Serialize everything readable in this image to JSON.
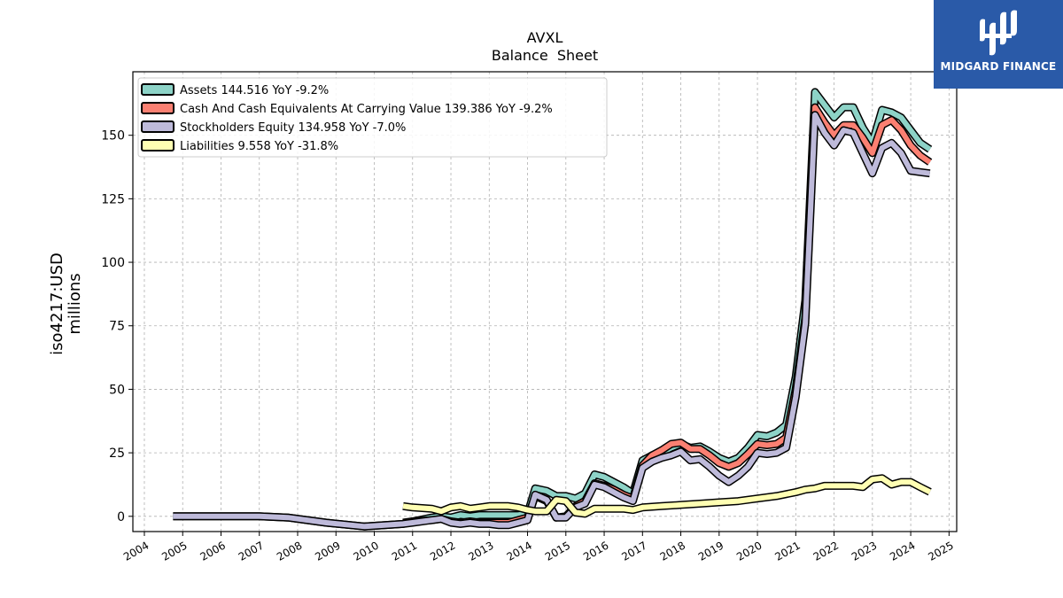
{
  "brand": {
    "name": "MIDGARD FINANCE",
    "bg_color": "#2a5aa8",
    "icon": "midgard-logo-icon"
  },
  "chart_data": {
    "type": "line",
    "title": "AVXL",
    "subtitle": "Balance  Sheet",
    "ylabel_line1": "iso4217:USD",
    "ylabel_line2": "millions",
    "xlabel": "",
    "xlim": [
      2003.7,
      2025.2
    ],
    "ylim": [
      -6,
      175
    ],
    "x_ticks": [
      2004,
      2005,
      2006,
      2007,
      2008,
      2009,
      2010,
      2011,
      2012,
      2013,
      2014,
      2015,
      2016,
      2017,
      2018,
      2019,
      2020,
      2021,
      2022,
      2023,
      2024,
      2025
    ],
    "y_ticks": [
      0,
      25,
      50,
      75,
      100,
      125,
      150
    ],
    "grid": true,
    "legend_position": "top-left",
    "series": [
      {
        "name": "Assets",
        "legend_label": "Assets  144.516 YoY -9.2%",
        "color": "#8dd3c7",
        "points": [
          [
            2004.75,
            0
          ],
          [
            2005.5,
            0
          ],
          [
            2006.5,
            0
          ],
          [
            2007.0,
            0
          ],
          [
            2007.75,
            -0.5
          ],
          [
            2008.75,
            -2.5
          ],
          [
            2009.75,
            -4
          ],
          [
            2010.75,
            -3
          ],
          [
            2011.0,
            -2
          ],
          [
            2011.5,
            -0.5
          ],
          [
            2011.75,
            0
          ],
          [
            2012.0,
            -0.5
          ],
          [
            2012.25,
            0.5
          ],
          [
            2012.5,
            0
          ],
          [
            2012.75,
            0.5
          ],
          [
            2013.0,
            0.5
          ],
          [
            2013.25,
            0.5
          ],
          [
            2013.5,
            0.5
          ],
          [
            2013.75,
            0.5
          ],
          [
            2014.0,
            1
          ],
          [
            2014.2,
            11
          ],
          [
            2014.5,
            10
          ],
          [
            2014.75,
            8
          ],
          [
            2015.0,
            8
          ],
          [
            2015.25,
            7
          ],
          [
            2015.5,
            9
          ],
          [
            2015.75,
            16.5
          ],
          [
            2016.0,
            15.5
          ],
          [
            2016.25,
            13.5
          ],
          [
            2016.5,
            11.5
          ],
          [
            2016.75,
            9
          ],
          [
            2017.0,
            22
          ],
          [
            2017.25,
            24
          ],
          [
            2017.5,
            25
          ],
          [
            2017.75,
            27
          ],
          [
            2018.0,
            28.5
          ],
          [
            2018.25,
            27
          ],
          [
            2018.5,
            27.5
          ],
          [
            2018.75,
            25.5
          ],
          [
            2019.0,
            23
          ],
          [
            2019.25,
            21.5
          ],
          [
            2019.5,
            23
          ],
          [
            2019.75,
            27
          ],
          [
            2020.0,
            32
          ],
          [
            2020.25,
            31.5
          ],
          [
            2020.5,
            33
          ],
          [
            2020.75,
            36
          ],
          [
            2021.0,
            55
          ],
          [
            2021.25,
            85
          ],
          [
            2021.5,
            167
          ],
          [
            2021.75,
            162
          ],
          [
            2022.0,
            157
          ],
          [
            2022.25,
            161
          ],
          [
            2022.5,
            161
          ],
          [
            2022.75,
            153
          ],
          [
            2023.0,
            147
          ],
          [
            2023.25,
            160
          ],
          [
            2023.5,
            159
          ],
          [
            2023.75,
            157
          ],
          [
            2024.0,
            152
          ],
          [
            2024.25,
            147
          ],
          [
            2024.5,
            144.5
          ]
        ]
      },
      {
        "name": "Cash And Cash Equivalents At Carrying Value",
        "legend_label": "Cash And Cash Equivalents At Carrying Value  139.386 YoY -9.2%",
        "color": "#fb8072",
        "points": [
          [
            2010.75,
            -2.5
          ],
          [
            2011.0,
            -2
          ],
          [
            2011.5,
            -1.5
          ],
          [
            2011.75,
            -1
          ],
          [
            2012.0,
            -2
          ],
          [
            2012.25,
            -2.5
          ],
          [
            2012.5,
            -2
          ],
          [
            2012.75,
            -2.5
          ],
          [
            2013.0,
            -2.5
          ],
          [
            2013.25,
            -2.5
          ],
          [
            2013.5,
            -2.5
          ],
          [
            2013.75,
            -1.5
          ],
          [
            2014.0,
            -0.5
          ],
          [
            2014.2,
            8
          ],
          [
            2014.5,
            6
          ],
          [
            2014.75,
            -0.5
          ],
          [
            2015.0,
            0
          ],
          [
            2015.25,
            4
          ],
          [
            2015.5,
            6
          ],
          [
            2015.75,
            13
          ],
          [
            2016.0,
            12
          ],
          [
            2016.25,
            10.5
          ],
          [
            2016.5,
            8.5
          ],
          [
            2016.75,
            7
          ],
          [
            2017.0,
            20
          ],
          [
            2017.25,
            24
          ],
          [
            2017.5,
            26
          ],
          [
            2017.75,
            28.5
          ],
          [
            2018.0,
            29
          ],
          [
            2018.25,
            26.5
          ],
          [
            2018.5,
            26.5
          ],
          [
            2018.75,
            24
          ],
          [
            2019.0,
            21
          ],
          [
            2019.25,
            19.5
          ],
          [
            2019.5,
            21
          ],
          [
            2019.75,
            24.5
          ],
          [
            2020.0,
            28.5
          ],
          [
            2020.25,
            28
          ],
          [
            2020.5,
            28.5
          ],
          [
            2020.75,
            31
          ],
          [
            2021.0,
            50
          ],
          [
            2021.25,
            78
          ],
          [
            2021.5,
            161
          ],
          [
            2021.75,
            155
          ],
          [
            2022.0,
            150
          ],
          [
            2022.25,
            154
          ],
          [
            2022.5,
            154
          ],
          [
            2022.75,
            149
          ],
          [
            2023.0,
            143
          ],
          [
            2023.25,
            154
          ],
          [
            2023.5,
            156
          ],
          [
            2023.75,
            152
          ],
          [
            2024.0,
            146
          ],
          [
            2024.25,
            142
          ],
          [
            2024.5,
            139.4
          ]
        ]
      },
      {
        "name": "Stockholders Equity",
        "legend_label": "Stockholders Equity  134.958 YoY -7.0%",
        "color": "#bebada",
        "points": [
          [
            2004.75,
            0
          ],
          [
            2005.5,
            0
          ],
          [
            2006.5,
            0
          ],
          [
            2007.0,
            0
          ],
          [
            2007.75,
            -0.5
          ],
          [
            2008.75,
            -2.5
          ],
          [
            2009.75,
            -4
          ],
          [
            2010.75,
            -3
          ],
          [
            2011.0,
            -2.5
          ],
          [
            2011.5,
            -1.5
          ],
          [
            2011.75,
            -1
          ],
          [
            2012.0,
            -2.5
          ],
          [
            2012.25,
            -3
          ],
          [
            2012.5,
            -2.5
          ],
          [
            2012.75,
            -3
          ],
          [
            2013.0,
            -3
          ],
          [
            2013.25,
            -3.5
          ],
          [
            2013.5,
            -3.5
          ],
          [
            2013.75,
            -2.5
          ],
          [
            2014.0,
            -1.5
          ],
          [
            2014.2,
            8.5
          ],
          [
            2014.5,
            6.5
          ],
          [
            2014.75,
            -0.5
          ],
          [
            2015.0,
            -0.5
          ],
          [
            2015.25,
            3.5
          ],
          [
            2015.5,
            5
          ],
          [
            2015.75,
            12.5
          ],
          [
            2016.0,
            11.5
          ],
          [
            2016.25,
            9.5
          ],
          [
            2016.5,
            7.5
          ],
          [
            2016.75,
            6
          ],
          [
            2017.0,
            19
          ],
          [
            2017.25,
            21.5
          ],
          [
            2017.5,
            23
          ],
          [
            2017.75,
            24
          ],
          [
            2018.0,
            25.5
          ],
          [
            2018.25,
            22
          ],
          [
            2018.5,
            22.5
          ],
          [
            2018.75,
            19.5
          ],
          [
            2019.0,
            16
          ],
          [
            2019.25,
            13.5
          ],
          [
            2019.5,
            16
          ],
          [
            2019.75,
            19.5
          ],
          [
            2020.0,
            25
          ],
          [
            2020.25,
            24.5
          ],
          [
            2020.5,
            25
          ],
          [
            2020.75,
            27
          ],
          [
            2021.0,
            47
          ],
          [
            2021.25,
            76
          ],
          [
            2021.5,
            158
          ],
          [
            2021.75,
            151
          ],
          [
            2022.0,
            146
          ],
          [
            2022.25,
            152
          ],
          [
            2022.5,
            151
          ],
          [
            2022.75,
            143
          ],
          [
            2023.0,
            135
          ],
          [
            2023.25,
            145
          ],
          [
            2023.5,
            147
          ],
          [
            2023.75,
            143
          ],
          [
            2024.0,
            136
          ],
          [
            2024.25,
            135.5
          ],
          [
            2024.5,
            135
          ]
        ]
      },
      {
        "name": "Liabilities",
        "legend_label": "Liabilities  9.558 YoY -31.8%",
        "color": "#ffffb3",
        "points": [
          [
            2010.75,
            4
          ],
          [
            2011.0,
            3.5
          ],
          [
            2011.5,
            3
          ],
          [
            2011.75,
            2
          ],
          [
            2012.0,
            3.5
          ],
          [
            2012.25,
            4
          ],
          [
            2012.5,
            3
          ],
          [
            2012.75,
            3.5
          ],
          [
            2013.0,
            4
          ],
          [
            2013.25,
            4
          ],
          [
            2013.5,
            4
          ],
          [
            2013.75,
            3.5
          ],
          [
            2014.0,
            2.5
          ],
          [
            2014.2,
            2
          ],
          [
            2014.5,
            2
          ],
          [
            2014.75,
            6.5
          ],
          [
            2015.0,
            6
          ],
          [
            2015.25,
            1.5
          ],
          [
            2015.5,
            1
          ],
          [
            2015.75,
            3
          ],
          [
            2016.0,
            3
          ],
          [
            2016.25,
            3
          ],
          [
            2016.5,
            3
          ],
          [
            2016.75,
            2.5
          ],
          [
            2017.0,
            3.5
          ],
          [
            2017.5,
            4
          ],
          [
            2018.0,
            4.5
          ],
          [
            2018.5,
            5
          ],
          [
            2019.0,
            5.5
          ],
          [
            2019.5,
            6
          ],
          [
            2020.0,
            7
          ],
          [
            2020.5,
            8
          ],
          [
            2021.0,
            9.5
          ],
          [
            2021.25,
            10.5
          ],
          [
            2021.5,
            11
          ],
          [
            2021.75,
            12
          ],
          [
            2022.0,
            12
          ],
          [
            2022.5,
            12
          ],
          [
            2022.75,
            11.5
          ],
          [
            2023.0,
            14.5
          ],
          [
            2023.25,
            15
          ],
          [
            2023.5,
            12.5
          ],
          [
            2023.75,
            13.5
          ],
          [
            2024.0,
            13.5
          ],
          [
            2024.25,
            11.5
          ],
          [
            2024.5,
            9.6
          ]
        ]
      }
    ]
  }
}
